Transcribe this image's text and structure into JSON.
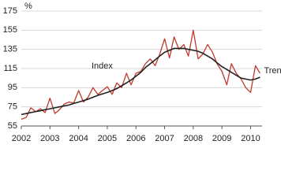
{
  "chart_data": {
    "type": "line",
    "unit_label": "%",
    "x": [
      2002,
      2002.17,
      2002.33,
      2002.5,
      2002.67,
      2002.83,
      2003,
      2003.17,
      2003.33,
      2003.5,
      2003.67,
      2003.83,
      2004,
      2004.17,
      2004.33,
      2004.5,
      2004.67,
      2004.83,
      2005,
      2005.17,
      2005.33,
      2005.5,
      2005.67,
      2005.83,
      2006,
      2006.17,
      2006.33,
      2006.5,
      2006.67,
      2006.83,
      2007,
      2007.17,
      2007.33,
      2007.5,
      2007.67,
      2007.83,
      2008,
      2008.17,
      2008.33,
      2008.5,
      2008.67,
      2008.83,
      2009,
      2009.17,
      2009.33,
      2009.5,
      2009.67,
      2009.83,
      2010,
      2010.17,
      2010.33
    ],
    "series": [
      {
        "name": "Index",
        "color": "#c0392b",
        "values": [
          62,
          64,
          74,
          70,
          73,
          69,
          84,
          68,
          72,
          78,
          80,
          79,
          92,
          80,
          85,
          95,
          88,
          92,
          96,
          88,
          100,
          95,
          110,
          98,
          110,
          112,
          120,
          125,
          118,
          130,
          146,
          126,
          148,
          135,
          140,
          128,
          155,
          125,
          130,
          140,
          132,
          120,
          112,
          98,
          120,
          110,
          104,
          95,
          90,
          118,
          110
        ]
      },
      {
        "name": "Trend",
        "color": "#222222",
        "values": [
          67,
          68,
          69,
          70,
          71,
          72,
          73,
          74,
          75,
          76,
          77,
          78.5,
          80,
          81.5,
          83,
          85,
          87,
          88.5,
          90,
          92,
          94,
          97,
          100,
          103,
          107,
          111,
          116,
          120,
          124,
          128,
          132,
          134,
          136,
          136,
          136,
          135,
          134,
          133,
          131,
          128,
          125,
          121,
          117,
          114,
          111,
          108,
          105,
          104,
          103,
          104,
          106
        ]
      }
    ],
    "xlim": [
      2002,
      2010.4
    ],
    "xticks": [
      2002,
      2003,
      2004,
      2005,
      2006,
      2007,
      2008,
      2009,
      2010
    ],
    "ylim": [
      55,
      175
    ],
    "yticks": [
      55,
      75,
      95,
      115,
      135,
      155,
      175
    ],
    "grid": true
  }
}
